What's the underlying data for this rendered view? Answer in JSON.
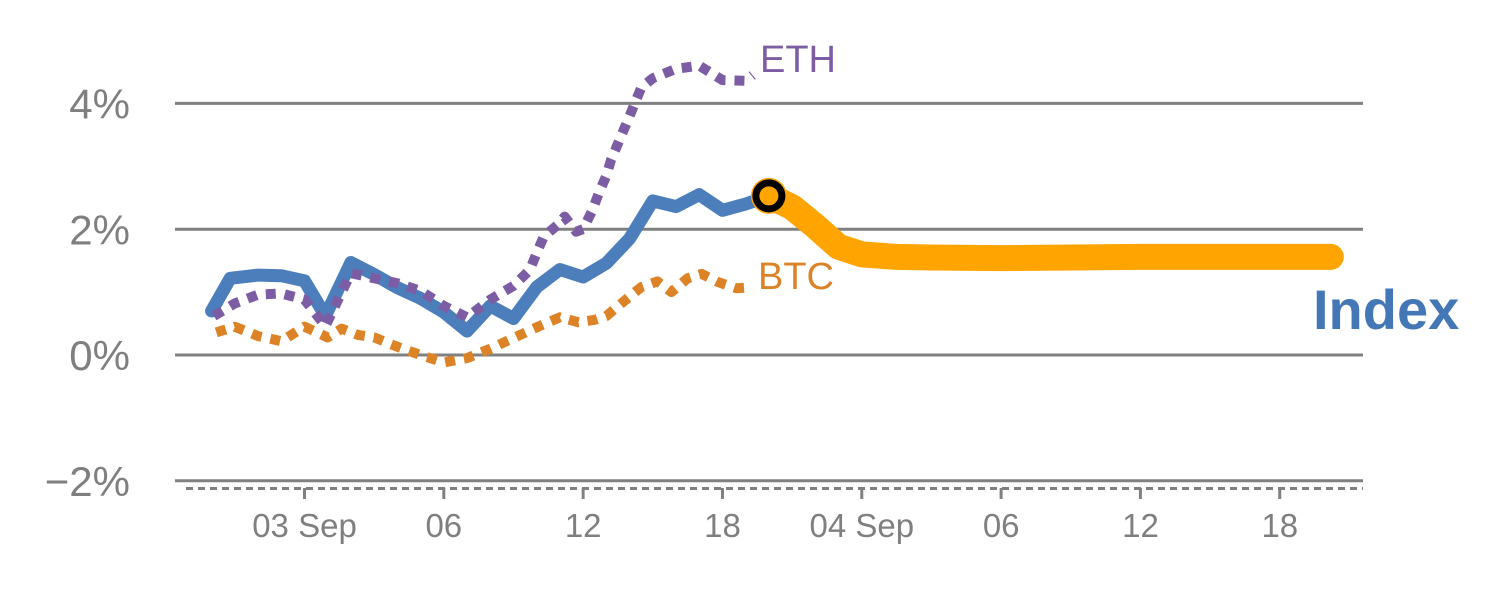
{
  "chart_data": {
    "type": "line",
    "title": "",
    "xlabel": "",
    "ylabel": "",
    "grid": "horizontal-only",
    "legend_position": "inline-labels",
    "ylim": [
      -2.35,
      5.0
    ],
    "x_unit": "hours (0 = 03 Sep 00:00)",
    "y_unit": "percent change",
    "y_ticks": [
      {
        "value": 4,
        "label": "4%"
      },
      {
        "value": 2,
        "label": "2%"
      },
      {
        "value": 0,
        "label": "0%"
      },
      {
        "value": -2,
        "label": "−2%"
      }
    ],
    "x_ticks": [
      {
        "hour": 0,
        "label": "03 Sep"
      },
      {
        "hour": 6,
        "label": "06"
      },
      {
        "hour": 12,
        "label": "12"
      },
      {
        "hour": 18,
        "label": "18"
      },
      {
        "hour": 24,
        "label": "04 Sep"
      },
      {
        "hour": 30,
        "label": "06"
      },
      {
        "hour": 36,
        "label": "12"
      },
      {
        "hour": 42,
        "label": "18"
      }
    ],
    "series": [
      {
        "name": "BTC",
        "style": "dotted",
        "color": "#DD8327",
        "points": [
          [
            -3.8,
            0.36
          ],
          [
            -3,
            0.45
          ],
          [
            -2,
            0.3
          ],
          [
            -1,
            0.22
          ],
          [
            0,
            0.45
          ],
          [
            1,
            0.28
          ],
          [
            1.6,
            0.42
          ],
          [
            2.3,
            0.32
          ],
          [
            3,
            0.28
          ],
          [
            4,
            0.13
          ],
          [
            5,
            0.0
          ],
          [
            6,
            -0.12
          ],
          [
            7,
            -0.05
          ],
          [
            8,
            0.1
          ],
          [
            9,
            0.27
          ],
          [
            10,
            0.44
          ],
          [
            11,
            0.6
          ],
          [
            11.8,
            0.52
          ],
          [
            12.5,
            0.56
          ],
          [
            13,
            0.62
          ],
          [
            13.9,
            0.9
          ],
          [
            14.5,
            1.08
          ],
          [
            15.2,
            1.17
          ],
          [
            15.8,
            1.0
          ],
          [
            16.5,
            1.22
          ],
          [
            17.1,
            1.29
          ],
          [
            17.8,
            1.16
          ],
          [
            18.6,
            1.06
          ],
          [
            19.3,
            1.08
          ]
        ]
      },
      {
        "name": "Index",
        "style": "solid",
        "color": "#4C7EBC",
        "points": [
          [
            -4,
            0.7
          ],
          [
            -3.2,
            1.22
          ],
          [
            -2,
            1.27
          ],
          [
            -1,
            1.26
          ],
          [
            0,
            1.18
          ],
          [
            0.9,
            0.62
          ],
          [
            2,
            1.47
          ],
          [
            3,
            1.28
          ],
          [
            4,
            1.07
          ],
          [
            5,
            0.9
          ],
          [
            6,
            0.68
          ],
          [
            7,
            0.38
          ],
          [
            8,
            0.78
          ],
          [
            9,
            0.58
          ],
          [
            10,
            1.08
          ],
          [
            11,
            1.36
          ],
          [
            12,
            1.24
          ],
          [
            13,
            1.46
          ],
          [
            14,
            1.85
          ],
          [
            15,
            2.45
          ],
          [
            16,
            2.36
          ],
          [
            17,
            2.55
          ],
          [
            18,
            2.3
          ],
          [
            19,
            2.4
          ],
          [
            20,
            2.53
          ]
        ]
      },
      {
        "name": "ETH",
        "style": "dotted",
        "color": "#7C5DA4",
        "points": [
          [
            -3.9,
            0.62
          ],
          [
            -3,
            0.82
          ],
          [
            -2,
            0.96
          ],
          [
            -1,
            0.98
          ],
          [
            0,
            0.88
          ],
          [
            0.9,
            0.46
          ],
          [
            2,
            1.3
          ],
          [
            3,
            1.22
          ],
          [
            4,
            1.14
          ],
          [
            5,
            1.02
          ],
          [
            6,
            0.78
          ],
          [
            7,
            0.6
          ],
          [
            8,
            0.88
          ],
          [
            9,
            1.1
          ],
          [
            9.7,
            1.35
          ],
          [
            10,
            1.62
          ],
          [
            10.3,
            1.88
          ],
          [
            11,
            2.1
          ],
          [
            11.2,
            2.2
          ],
          [
            11.7,
            1.96
          ],
          [
            12,
            2.0
          ],
          [
            12.4,
            2.3
          ],
          [
            12.7,
            2.6
          ],
          [
            13,
            2.85
          ],
          [
            13.2,
            3.1
          ],
          [
            14,
            3.8
          ],
          [
            14.5,
            4.25
          ],
          [
            15,
            4.4
          ],
          [
            16,
            4.55
          ],
          [
            17,
            4.6
          ],
          [
            18,
            4.37
          ],
          [
            19,
            4.36
          ],
          [
            19.3,
            4.45
          ]
        ]
      },
      {
        "name": "Index projection",
        "style": "thick",
        "color": "#FFA400",
        "points": [
          [
            20,
            2.53
          ],
          [
            21,
            2.35
          ],
          [
            22,
            2.05
          ],
          [
            23,
            1.72
          ],
          [
            24,
            1.6
          ],
          [
            25.5,
            1.56
          ],
          [
            27,
            1.55
          ],
          [
            30,
            1.54
          ],
          [
            36,
            1.56
          ],
          [
            44.2,
            1.56
          ]
        ]
      }
    ],
    "marker": {
      "hour": 20,
      "value": 2.53,
      "fill": "#FFA400",
      "ring_color": "#000000",
      "meaning": "current point where Index history meets projection"
    },
    "labels": {
      "eth": "ETH",
      "btc": "BTC",
      "index": "Index"
    },
    "colors": {
      "grid": "#808080",
      "tick_text": "#7f7f7f",
      "index_label": "#4377B5"
    }
  }
}
